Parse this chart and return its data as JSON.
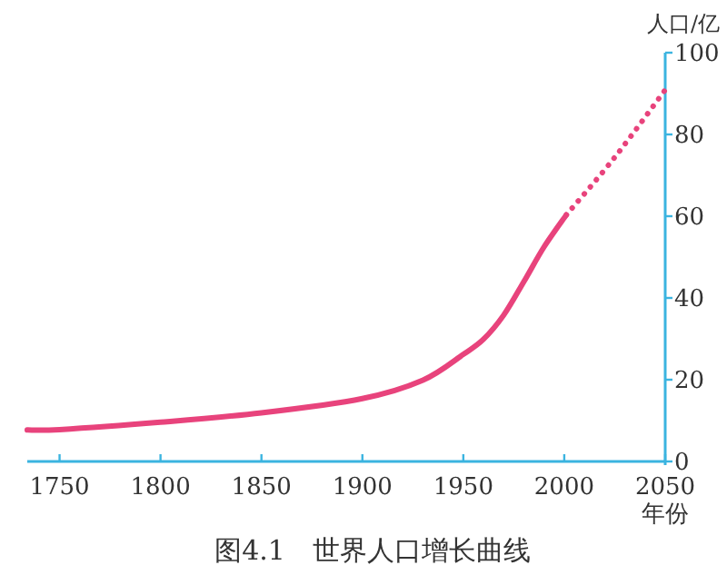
{
  "chart_data": {
    "type": "line",
    "title": "图4.1　世界人口增长曲线",
    "xlabel": "年份",
    "ylabel": "人口/亿",
    "xlim": [
      1734,
      2050
    ],
    "ylim": [
      0,
      100
    ],
    "xticks": [
      1750,
      1800,
      1850,
      1900,
      1950,
      2000,
      2050
    ],
    "yticks": [
      0,
      20,
      40,
      60,
      80,
      100
    ],
    "series": [
      {
        "color": "#e8437c",
        "line_style": "solid",
        "x": [
          1734,
          1750,
          1800,
          1850,
          1900,
          1930,
          1950,
          1960,
          1970,
          1980,
          1990,
          2001
        ],
        "values": [
          7.7,
          7.8,
          9.6,
          11.9,
          15.4,
          19.9,
          26.2,
          29.9,
          35.8,
          44,
          52.5,
          60.3
        ]
      },
      {
        "color": "#e8437c",
        "line_style": "dotted",
        "x": [
          2001,
          2025,
          2050
        ],
        "values": [
          60.3,
          74.4,
          90.9
        ]
      }
    ]
  }
}
